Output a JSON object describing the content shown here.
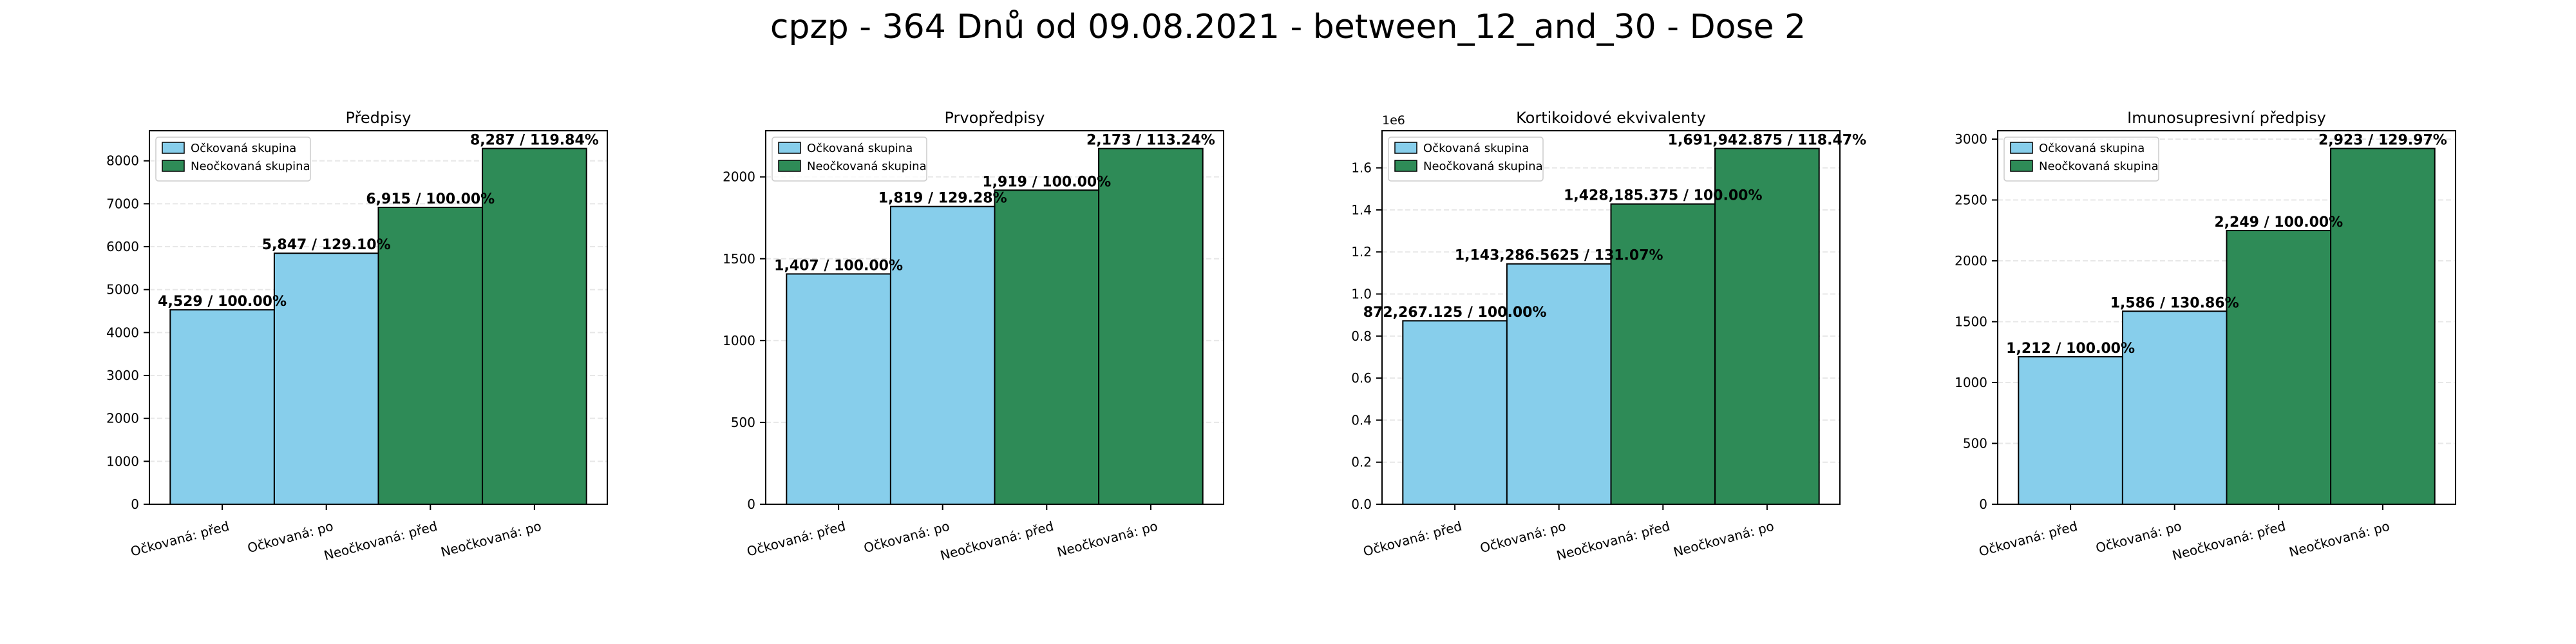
{
  "suptitle": "cpzp - 364 Dnů od 09.08.2021 - between_12_and_30 - Dose 2",
  "colors": {
    "vaccinated": "#87CEEB",
    "unvaccinated": "#2E8B57"
  },
  "chart_data": [
    {
      "type": "bar",
      "title": "Předpisy",
      "categories": [
        "Očkovaná: před",
        "Očkovaná: po",
        "Neočkovaná: před",
        "Neočkovaná: po"
      ],
      "values": [
        4529,
        5847,
        6915,
        8287
      ],
      "labels": [
        "4,529 / 100.00%",
        "5,847 / 129.10%",
        "6,915 / 100.00%",
        "8,287 / 119.84%"
      ],
      "groups": [
        "vaccinated",
        "vaccinated",
        "unvaccinated",
        "unvaccinated"
      ],
      "legend": [
        "Očkovaná skupina",
        "Neočkovaná skupina"
      ],
      "legend_position": "upper-left",
      "ylim": [
        0,
        8701
      ],
      "yticks": [
        0,
        1000,
        2000,
        3000,
        4000,
        5000,
        6000,
        7000,
        8000
      ],
      "ytick_labels": [
        "0",
        "1000",
        "2000",
        "3000",
        "4000",
        "5000",
        "6000",
        "7000",
        "8000"
      ],
      "scale_note": "",
      "grid": "y"
    },
    {
      "type": "bar",
      "title": "Prvopředpisy",
      "categories": [
        "Očkovaná: před",
        "Očkovaná: po",
        "Neočkovaná: před",
        "Neočkovaná: po"
      ],
      "values": [
        1407,
        1819,
        1919,
        2173
      ],
      "labels": [
        "1,407 / 100.00%",
        "1,819 / 129.28%",
        "1,919 / 100.00%",
        "2,173 / 113.24%"
      ],
      "groups": [
        "vaccinated",
        "vaccinated",
        "unvaccinated",
        "unvaccinated"
      ],
      "legend": [
        "Očkovaná skupina",
        "Neočkovaná skupina"
      ],
      "legend_position": "upper-left",
      "ylim": [
        0,
        2282
      ],
      "yticks": [
        0,
        500,
        1000,
        1500,
        2000
      ],
      "ytick_labels": [
        "0",
        "500",
        "1000",
        "1500",
        "2000"
      ],
      "scale_note": "",
      "grid": "y"
    },
    {
      "type": "bar",
      "title": "Kortikoidové ekvivalenty",
      "categories": [
        "Očkovaná: před",
        "Očkovaná: po",
        "Neočkovaná: před",
        "Neočkovaná: po"
      ],
      "values": [
        872267.125,
        1143286.5625,
        1428185.375,
        1691942.875
      ],
      "labels": [
        "872,267.125 / 100.00%",
        "1,143,286.5625 / 131.07%",
        "1,428,185.375 / 100.00%",
        "1,691,942.875 / 118.47%"
      ],
      "groups": [
        "vaccinated",
        "vaccinated",
        "unvaccinated",
        "unvaccinated"
      ],
      "legend": [
        "Očkovaná skupina",
        "Neočkovaná skupina"
      ],
      "legend_position": "upper-left",
      "ylim": [
        0,
        1776540
      ],
      "yticks": [
        0,
        200000,
        400000,
        600000,
        800000,
        1000000,
        1200000,
        1400000,
        1600000
      ],
      "ytick_labels": [
        "0.0",
        "0.2",
        "0.4",
        "0.6",
        "0.8",
        "1.0",
        "1.2",
        "1.4",
        "1.6"
      ],
      "scale_note": "1e6",
      "grid": "y"
    },
    {
      "type": "bar",
      "title": "Imunosupresivní předpisy",
      "categories": [
        "Očkovaná: před",
        "Očkovaná: po",
        "Neočkovaná: před",
        "Neočkovaná: po"
      ],
      "values": [
        1212,
        1586,
        2249,
        2923
      ],
      "labels": [
        "1,212 / 100.00%",
        "1,586 / 130.86%",
        "2,249 / 100.00%",
        "2,923 / 129.97%"
      ],
      "groups": [
        "vaccinated",
        "vaccinated",
        "unvaccinated",
        "unvaccinated"
      ],
      "legend": [
        "Očkovaná skupina",
        "Neočkovaná skupina"
      ],
      "legend_position": "upper-left",
      "ylim": [
        0,
        3069
      ],
      "yticks": [
        0,
        500,
        1000,
        1500,
        2000,
        2500,
        3000
      ],
      "ytick_labels": [
        "0",
        "500",
        "1000",
        "1500",
        "2000",
        "2500",
        "3000"
      ],
      "scale_note": "",
      "grid": "y"
    }
  ]
}
